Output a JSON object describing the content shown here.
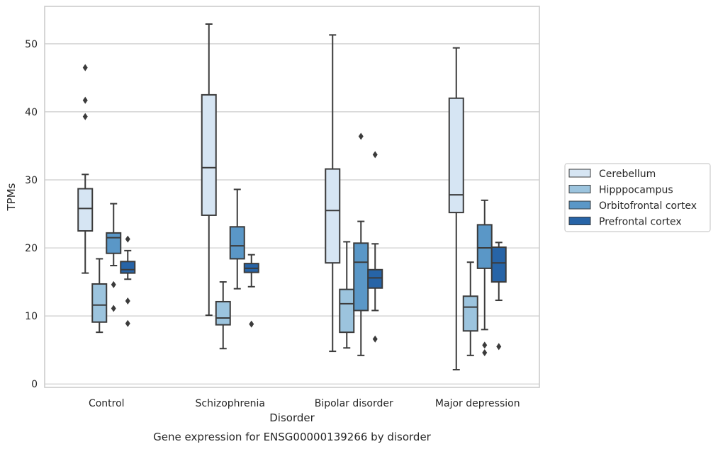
{
  "chart_data": {
    "type": "box",
    "title": "",
    "caption": "Gene expression for ENSG00000139266 by disorder",
    "xlabel": "Disorder",
    "ylabel": "TPMs",
    "ylim": [
      -0.5,
      55.5
    ],
    "yticks": [
      0,
      10,
      20,
      30,
      40,
      50
    ],
    "grid": "horizontal",
    "legend_position": "right",
    "categories": [
      "Control",
      "Schizophrenia",
      "Bipolar disorder",
      "Major depression"
    ],
    "series": [
      {
        "name": "Cerebellum",
        "color": "#d6e5f3",
        "boxes": [
          {
            "whislo": 16.3,
            "q1": 22.5,
            "med": 25.8,
            "q3": 28.7,
            "whishi": 30.8,
            "fliers": [
              39.3,
              41.7,
              46.5
            ]
          },
          {
            "whislo": 10.1,
            "q1": 24.8,
            "med": 31.8,
            "q3": 42.5,
            "whishi": 52.9,
            "fliers": []
          },
          {
            "whislo": 4.8,
            "q1": 17.8,
            "med": 25.5,
            "q3": 31.6,
            "whishi": 51.3,
            "fliers": []
          },
          {
            "whislo": 2.1,
            "q1": 25.2,
            "med": 27.8,
            "q3": 42.0,
            "whishi": 49.4,
            "fliers": []
          }
        ]
      },
      {
        "name": "Hipppocampus",
        "color": "#9cc4de",
        "boxes": [
          {
            "whislo": 7.6,
            "q1": 9.1,
            "med": 11.6,
            "q3": 14.7,
            "whishi": 18.4,
            "fliers": []
          },
          {
            "whislo": 5.2,
            "q1": 8.7,
            "med": 9.7,
            "q3": 12.1,
            "whishi": 15.0,
            "fliers": []
          },
          {
            "whislo": 5.3,
            "q1": 7.6,
            "med": 11.8,
            "q3": 13.9,
            "whishi": 20.9,
            "fliers": []
          },
          {
            "whislo": 4.2,
            "q1": 7.8,
            "med": 11.3,
            "q3": 12.9,
            "whishi": 17.9,
            "fliers": []
          }
        ]
      },
      {
        "name": "Orbitofrontal cortex",
        "color": "#5a97c7",
        "boxes": [
          {
            "whislo": 17.4,
            "q1": 19.2,
            "med": 21.5,
            "q3": 22.2,
            "whishi": 26.5,
            "fliers": [
              11.1,
              14.6
            ]
          },
          {
            "whislo": 14.0,
            "q1": 18.4,
            "med": 20.3,
            "q3": 23.1,
            "whishi": 28.6,
            "fliers": []
          },
          {
            "whislo": 4.2,
            "q1": 10.8,
            "med": 17.9,
            "q3": 20.7,
            "whishi": 23.9,
            "fliers": [
              36.4
            ]
          },
          {
            "whislo": 8.0,
            "q1": 17.0,
            "med": 20.0,
            "q3": 23.4,
            "whishi": 27.0,
            "fliers": [
              4.6,
              5.7
            ]
          }
        ]
      },
      {
        "name": "Prefrontal cortex",
        "color": "#2764a7",
        "boxes": [
          {
            "whislo": 15.4,
            "q1": 16.3,
            "med": 16.8,
            "q3": 18.0,
            "whishi": 19.6,
            "fliers": [
              8.9,
              12.2,
              21.3
            ]
          },
          {
            "whislo": 14.3,
            "q1": 16.4,
            "med": 17.0,
            "q3": 17.7,
            "whishi": 19.0,
            "fliers": [
              8.8
            ]
          },
          {
            "whislo": 10.8,
            "q1": 14.1,
            "med": 15.6,
            "q3": 16.8,
            "whishi": 20.6,
            "fliers": [
              6.6,
              33.7
            ]
          },
          {
            "whislo": 12.3,
            "q1": 15.0,
            "med": 17.8,
            "q3": 20.1,
            "whishi": 20.8,
            "fliers": [
              5.5
            ]
          }
        ]
      }
    ]
  }
}
